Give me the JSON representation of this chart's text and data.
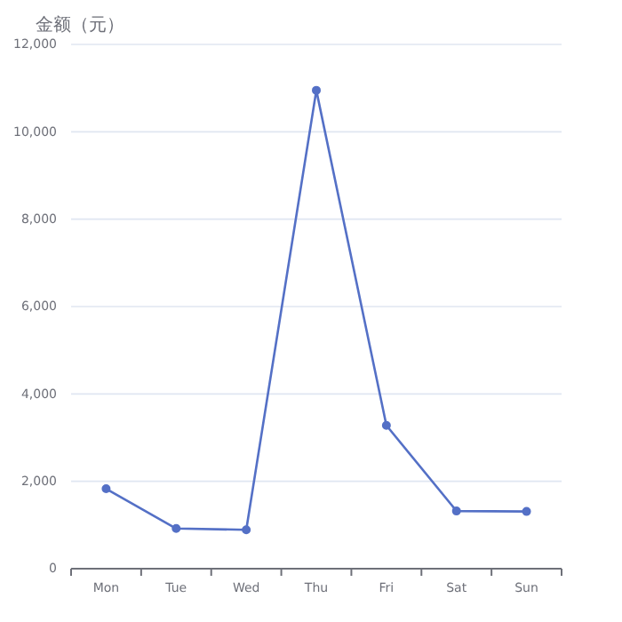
{
  "chart_data": {
    "type": "line",
    "ylabel": "金额（元）",
    "categories": [
      "Mon",
      "Tue",
      "Wed",
      "Thu",
      "Fri",
      "Sat",
      "Sun"
    ],
    "series": [
      {
        "color": "#5470c6",
        "values": [
          1830,
          920,
          890,
          10950,
          3280,
          1320,
          1310
        ]
      }
    ],
    "ylim": [
      0,
      12000
    ],
    "yticks": [
      {
        "value": 0,
        "label": "0"
      },
      {
        "value": 2000,
        "label": "2,000"
      },
      {
        "value": 4000,
        "label": "4,000"
      },
      {
        "value": 6000,
        "label": "6,000"
      },
      {
        "value": 8000,
        "label": "8,000"
      },
      {
        "value": 10000,
        "label": "10,000"
      },
      {
        "value": 12000,
        "label": "12,000"
      }
    ],
    "grid": "y",
    "marker": "circle"
  }
}
